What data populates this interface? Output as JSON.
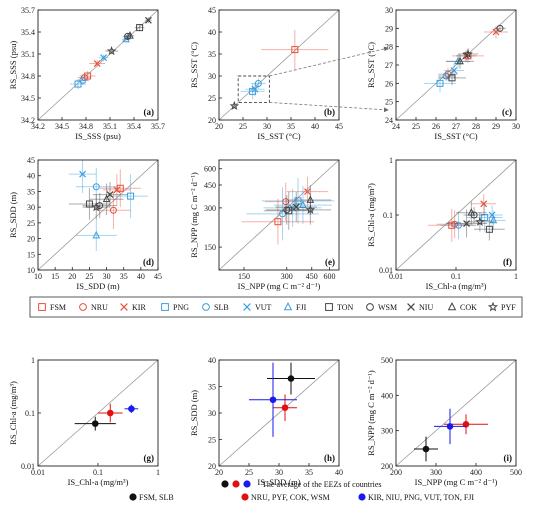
{
  "colors": {
    "FSM": "#e8503a",
    "NRU": "#e8503a",
    "KIR": "#e8503a",
    "PNG": "#3a9fe0",
    "SLB": "#3a9fe0",
    "VUT": "#3a9fe0",
    "FJI": "#3a9fe0",
    "TON": "#444444",
    "WSM": "#444444",
    "NIU": "#444444",
    "COK": "#444444",
    "PYF": "#444444",
    "black": "#111111",
    "red": "#e01010",
    "blue": "#1a1aee"
  },
  "legend_top": {
    "entries": [
      {
        "code": "FSM",
        "marker": "square"
      },
      {
        "code": "NRU",
        "marker": "circle"
      },
      {
        "code": "KIR",
        "marker": "x"
      },
      {
        "code": "PNG",
        "marker": "square"
      },
      {
        "code": "SLB",
        "marker": "circle"
      },
      {
        "code": "VUT",
        "marker": "x"
      },
      {
        "code": "FJI",
        "marker": "triangle"
      },
      {
        "code": "TON",
        "marker": "square"
      },
      {
        "code": "WSM",
        "marker": "circle"
      },
      {
        "code": "NIU",
        "marker": "x"
      },
      {
        "code": "COK",
        "marker": "triangle"
      },
      {
        "code": "PYF",
        "marker": "star"
      }
    ]
  },
  "legend_bottom": {
    "title": "The average of the EEZs of countries",
    "groups": [
      {
        "color": "black",
        "label": "FSM, SLB"
      },
      {
        "color": "red",
        "label": "NRU, PYF, COK, WSM"
      },
      {
        "color": "blue",
        "label": "KIR, NIU, PNG, VUT, TON, FJI"
      }
    ]
  },
  "chart_data": [
    {
      "panel": "(a)",
      "type": "scatter",
      "xlabel": "IS_SSS (psu)",
      "ylabel": "RS_SSS (psu)",
      "xlim": [
        34.2,
        35.7
      ],
      "ylim": [
        34.2,
        35.7
      ],
      "xticks": [
        "34.2",
        "34.5",
        "34.8",
        "35.1",
        "35.4",
        "35.7"
      ],
      "yticks": [
        "34.2",
        "34.5",
        "34.8",
        "35.1",
        "35.4",
        "35.7"
      ],
      "points": [
        {
          "code": "FSM",
          "marker": "square",
          "x": 34.82,
          "y": 34.8,
          "ex": 0.1,
          "ey": 0.07
        },
        {
          "code": "NRU",
          "marker": "circle",
          "x": 34.78,
          "y": 34.78,
          "ex": 0.08,
          "ey": 0.05
        },
        {
          "code": "KIR",
          "marker": "x",
          "x": 34.94,
          "y": 34.97,
          "ex": 0.1,
          "ey": 0.05
        },
        {
          "code": "PNG",
          "marker": "square",
          "x": 34.7,
          "y": 34.69,
          "ex": 0.1,
          "ey": 0.07
        },
        {
          "code": "SLB",
          "marker": "circle",
          "x": 34.76,
          "y": 34.74,
          "ex": 0.08,
          "ey": 0.06
        },
        {
          "code": "VUT",
          "marker": "x",
          "x": 35.02,
          "y": 35.05,
          "ex": 0.06,
          "ey": 0.04
        },
        {
          "code": "FJI",
          "marker": "triangle",
          "x": 35.3,
          "y": 35.3,
          "ex": 0.05,
          "ey": 0.04
        },
        {
          "code": "TON",
          "marker": "square",
          "x": 35.47,
          "y": 35.46,
          "ex": 0.06,
          "ey": 0.05
        },
        {
          "code": "WSM",
          "marker": "circle",
          "x": 35.32,
          "y": 35.34,
          "ex": 0.06,
          "ey": 0.05
        },
        {
          "code": "NIU",
          "marker": "x",
          "x": 35.58,
          "y": 35.56,
          "ex": 0.04,
          "ey": 0.04
        },
        {
          "code": "COK",
          "marker": "triangle",
          "x": 35.35,
          "y": 35.35,
          "ex": 0.05,
          "ey": 0.05
        },
        {
          "code": "PYF",
          "marker": "star",
          "x": 35.12,
          "y": 35.14,
          "ex": 0.08,
          "ey": 0.04
        }
      ]
    },
    {
      "panel": "(b)",
      "type": "scatter",
      "xlabel": "IS_SST (°C)",
      "ylabel": "RS_SST (°C)",
      "xlim": [
        20,
        45
      ],
      "ylim": [
        20,
        45
      ],
      "xticks": [
        "20",
        "25",
        "30",
        "35",
        "40",
        "45"
      ],
      "yticks": [
        "20",
        "25",
        "30",
        "35",
        "40",
        "45"
      ],
      "points": [
        {
          "code": "FSM",
          "marker": "square",
          "x": 35.8,
          "y": 36,
          "ex": 7,
          "ey": 4.5
        },
        {
          "code": "PYF",
          "marker": "star",
          "x": 23.2,
          "y": 23.2,
          "ex": 0.6,
          "ey": 0.6
        },
        {
          "code": "PNG",
          "marker": "square",
          "x": 27,
          "y": 26.5,
          "ex": 2.5,
          "ey": 1.8
        },
        {
          "code": "VUT",
          "marker": "x",
          "x": 27.5,
          "y": 27,
          "ex": 2,
          "ey": 1.5
        },
        {
          "code": "SLB",
          "marker": "circle",
          "x": 28.2,
          "y": 28.3,
          "ex": 1.5,
          "ey": 1.2
        }
      ]
    },
    {
      "panel": "(c)",
      "type": "scatter",
      "xlabel": "IS_SST (°C)",
      "ylabel": "RS_SST (°C)",
      "xlim": [
        24,
        30
      ],
      "ylim": [
        24,
        30
      ],
      "xticks": [
        "24",
        "25",
        "26",
        "27",
        "28",
        "29",
        "30"
      ],
      "yticks": [
        "24",
        "25",
        "26",
        "27",
        "28",
        "29",
        "30"
      ],
      "points": [
        {
          "code": "KIR",
          "marker": "x",
          "x": 29.0,
          "y": 28.8,
          "ex": 0.6,
          "ey": 0.35
        },
        {
          "code": "WSM",
          "marker": "circle",
          "x": 29.2,
          "y": 29.0,
          "ex": 0.3,
          "ey": 0.2
        },
        {
          "code": "NRU",
          "marker": "circle",
          "x": 26.6,
          "y": 26.5,
          "ex": 0.5,
          "ey": 0.35
        },
        {
          "code": "PNG",
          "marker": "square",
          "x": 26.2,
          "y": 26.0,
          "ex": 0.8,
          "ey": 0.5
        },
        {
          "code": "SLB",
          "marker": "circle",
          "x": 26.5,
          "y": 26.4,
          "ex": 0.4,
          "ey": 0.3
        },
        {
          "code": "VUT",
          "marker": "x",
          "x": 26.9,
          "y": 26.7,
          "ex": 0.5,
          "ey": 0.4
        },
        {
          "code": "FJI",
          "marker": "triangle",
          "x": 27.1,
          "y": 27.2,
          "ex": 0.6,
          "ey": 0.4
        },
        {
          "code": "TON",
          "marker": "square",
          "x": 26.8,
          "y": 26.3,
          "ex": 0.7,
          "ey": 0.4
        },
        {
          "code": "NIU",
          "marker": "x",
          "x": 27.5,
          "y": 27.5,
          "ex": 0.5,
          "ey": 0.3
        },
        {
          "code": "COK",
          "marker": "triangle",
          "x": 27.2,
          "y": 27.2,
          "ex": 0.7,
          "ey": 0.4
        },
        {
          "code": "FSM",
          "marker": "square",
          "x": 27.6,
          "y": 27.5,
          "ex": 0.8,
          "ey": 0.4
        },
        {
          "code": "PYF",
          "marker": "star",
          "x": 27.6,
          "y": 27.6,
          "ex": 0.5,
          "ey": 0.3
        }
      ]
    },
    {
      "panel": "(d)",
      "type": "scatter",
      "xlabel": "IS_SDD (m)",
      "ylabel": "RS_SDD (m)",
      "xlim": [
        10,
        45
      ],
      "ylim": [
        10,
        45
      ],
      "xticks": [
        "10",
        "15",
        "20",
        "25",
        "30",
        "35",
        "40",
        "45"
      ],
      "yticks": [
        "10",
        "15",
        "20",
        "25",
        "30",
        "35",
        "40",
        "45"
      ],
      "points": [
        {
          "code": "FSM",
          "marker": "square",
          "x": 34,
          "y": 36,
          "ex": 6,
          "ey": 6
        },
        {
          "code": "NRU",
          "marker": "circle",
          "x": 32,
          "y": 29,
          "ex": 5,
          "ey": 6
        },
        {
          "code": "KIR",
          "marker": "x",
          "x": 33,
          "y": 35.5,
          "ex": 4,
          "ey": 5
        },
        {
          "code": "PNG",
          "marker": "square",
          "x": 37,
          "y": 33.5,
          "ex": 5,
          "ey": 7
        },
        {
          "code": "SLB",
          "marker": "circle",
          "x": 27,
          "y": 36.5,
          "ex": 6,
          "ey": 6
        },
        {
          "code": "VUT",
          "marker": "x",
          "x": 23,
          "y": 40.5,
          "ex": 4,
          "ey": 6
        },
        {
          "code": "FJI",
          "marker": "triangle",
          "x": 27,
          "y": 21,
          "ex": 6,
          "ey": 5
        },
        {
          "code": "TON",
          "marker": "square",
          "x": 25,
          "y": 31,
          "ex": 6,
          "ey": 5
        },
        {
          "code": "WSM",
          "marker": "circle",
          "x": 28,
          "y": 30.5,
          "ex": 5,
          "ey": 4
        },
        {
          "code": "NIU",
          "marker": "x",
          "x": 31,
          "y": 34,
          "ex": 5,
          "ey": 4
        },
        {
          "code": "COK",
          "marker": "triangle",
          "x": 30,
          "y": 32.5,
          "ex": 5,
          "ey": 5
        },
        {
          "code": "PYF",
          "marker": "star",
          "x": 27,
          "y": 30,
          "ex": 4,
          "ey": 4
        }
      ]
    },
    {
      "panel": "(e)",
      "type": "scatter",
      "scale": "log",
      "xlabel": "IS_NPP (mg C m⁻² d⁻¹)",
      "ylabel": "RS_NPP (mg C m⁻² d⁻¹)",
      "xlim": [
        100,
        700
      ],
      "ylim": [
        100,
        700
      ],
      "xticks": [
        "150",
        "300",
        "450",
        "600"
      ],
      "yticks": [
        "150",
        "300",
        "450",
        "600"
      ],
      "points": [
        {
          "code": "FSM",
          "marker": "square",
          "x": 260,
          "y": 235,
          "exf": 1.8,
          "eyf": 1.5
        },
        {
          "code": "NRU",
          "marker": "circle",
          "x": 295,
          "y": 335,
          "exf": 1.4,
          "eyf": 1.4
        },
        {
          "code": "KIR",
          "marker": "x",
          "x": 420,
          "y": 400,
          "exf": 1.4,
          "eyf": 1.3
        },
        {
          "code": "PNG",
          "marker": "square",
          "x": 360,
          "y": 340,
          "exf": 1.8,
          "eyf": 1.5
        },
        {
          "code": "SLB",
          "marker": "circle",
          "x": 280,
          "y": 270,
          "exf": 1.8,
          "eyf": 1.6
        },
        {
          "code": "VUT",
          "marker": "x",
          "x": 330,
          "y": 300,
          "exf": 1.6,
          "eyf": 1.4
        },
        {
          "code": "FJI",
          "marker": "triangle",
          "x": 390,
          "y": 315,
          "exf": 1.6,
          "eyf": 1.4
        },
        {
          "code": "TON",
          "marker": "square",
          "x": 310,
          "y": 285,
          "exf": 1.5,
          "eyf": 1.4
        },
        {
          "code": "WSM",
          "marker": "circle",
          "x": 300,
          "y": 290,
          "exf": 1.4,
          "eyf": 1.3
        },
        {
          "code": "NIU",
          "marker": "x",
          "x": 350,
          "y": 305,
          "exf": 1.4,
          "eyf": 1.3
        },
        {
          "code": "COK",
          "marker": "triangle",
          "x": 440,
          "y": 345,
          "exf": 1.4,
          "eyf": 1.3
        },
        {
          "code": "PYF",
          "marker": "star",
          "x": 440,
          "y": 290,
          "exf": 1.4,
          "eyf": 1.3
        }
      ]
    },
    {
      "panel": "(f)",
      "type": "scatter",
      "scale": "log",
      "xlabel": "IS_Chl-a (mg/m³)",
      "ylabel": "RS_Chl-a (mg/m³)",
      "xlim": [
        0.01,
        1
      ],
      "ylim": [
        0.01,
        1
      ],
      "xticks": [
        "0.01",
        "0.1",
        "1"
      ],
      "yticks": [
        "0.01",
        "0.1",
        "1"
      ],
      "points": [
        {
          "code": "FSM",
          "marker": "square",
          "x": 0.085,
          "y": 0.065,
          "exf": 2.5,
          "eyf": 2.0
        },
        {
          "code": "NRU",
          "marker": "circle",
          "x": 0.095,
          "y": 0.068,
          "exf": 2.0,
          "eyf": 1.8
        },
        {
          "code": "KIR",
          "marker": "x",
          "x": 0.29,
          "y": 0.16,
          "exf": 1.6,
          "eyf": 1.5
        },
        {
          "code": "PNG",
          "marker": "square",
          "x": 0.3,
          "y": 0.09,
          "exf": 2.0,
          "eyf": 1.8
        },
        {
          "code": "SLB",
          "marker": "circle",
          "x": 0.11,
          "y": 0.065,
          "exf": 2.0,
          "eyf": 1.8
        },
        {
          "code": "VUT",
          "marker": "x",
          "x": 0.4,
          "y": 0.1,
          "exf": 1.5,
          "eyf": 1.5
        },
        {
          "code": "FJI",
          "marker": "triangle",
          "x": 0.42,
          "y": 0.08,
          "exf": 1.6,
          "eyf": 1.5
        },
        {
          "code": "TON",
          "marker": "square",
          "x": 0.36,
          "y": 0.055,
          "exf": 1.8,
          "eyf": 1.6
        },
        {
          "code": "WSM",
          "marker": "circle",
          "x": 0.2,
          "y": 0.1,
          "exf": 1.5,
          "eyf": 1.4
        },
        {
          "code": "NIU",
          "marker": "x",
          "x": 0.15,
          "y": 0.07,
          "exf": 2.2,
          "eyf": 1.8
        },
        {
          "code": "COK",
          "marker": "triangle",
          "x": 0.18,
          "y": 0.11,
          "exf": 1.8,
          "eyf": 1.6
        },
        {
          "code": "PYF",
          "marker": "star",
          "x": 0.25,
          "y": 0.075,
          "exf": 1.8,
          "eyf": 1.5
        }
      ]
    },
    {
      "panel": "(g)",
      "type": "scatter",
      "scale": "log",
      "xlabel": "IS_Chl-a (mg/m³)",
      "ylabel": "RS_Chl-a (mg/m³)",
      "xlim": [
        0.01,
        1
      ],
      "ylim": [
        0.01,
        1
      ],
      "xticks": [
        "0.01",
        "0.1",
        "1"
      ],
      "yticks": [
        "0.01",
        "0.1",
        "1"
      ],
      "points": [
        {
          "group": "black",
          "x": 0.09,
          "y": 0.063,
          "exf": 2.2,
          "eyf": 1.35
        },
        {
          "group": "red",
          "x": 0.16,
          "y": 0.1,
          "exf": 1.6,
          "eyf": 1.5
        },
        {
          "group": "blue",
          "x": 0.36,
          "y": 0.12,
          "exf": 1.3,
          "eyf": 1.2
        }
      ]
    },
    {
      "panel": "(h)",
      "type": "scatter",
      "xlabel": "IS_SDD (m)",
      "ylabel": "RS_SDD (m)",
      "xlim": [
        20,
        40
      ],
      "ylim": [
        20,
        40
      ],
      "xticks": [
        "20",
        "25",
        "30",
        "35",
        "40"
      ],
      "yticks": [
        "20",
        "25",
        "30",
        "35",
        "40"
      ],
      "points": [
        {
          "group": "black",
          "x": 32,
          "y": 36.5,
          "ex": 4,
          "ey": 3
        },
        {
          "group": "red",
          "x": 31,
          "y": 31,
          "ex": 2,
          "ey": 2.5
        },
        {
          "group": "blue",
          "x": 29,
          "y": 32.5,
          "ex": 4,
          "ey": 7
        }
      ]
    },
    {
      "panel": "(i)",
      "type": "scatter",
      "xlabel": "IS_NPP (mg C m⁻² d⁻¹)",
      "ylabel": "RS_NPP (mg C m⁻² d⁻¹)",
      "xlim": [
        200,
        500
      ],
      "ylim": [
        200,
        500
      ],
      "xticks": [
        "200",
        "300",
        "400",
        "500"
      ],
      "yticks": [
        "200",
        "300",
        "400",
        "500"
      ],
      "points": [
        {
          "group": "black",
          "x": 275,
          "y": 248,
          "ex": 30,
          "ey": 35
        },
        {
          "group": "red",
          "x": 375,
          "y": 318,
          "ex": 55,
          "ey": 28
        },
        {
          "group": "blue",
          "x": 335,
          "y": 312,
          "ex": 40,
          "ey": 50
        }
      ]
    }
  ]
}
